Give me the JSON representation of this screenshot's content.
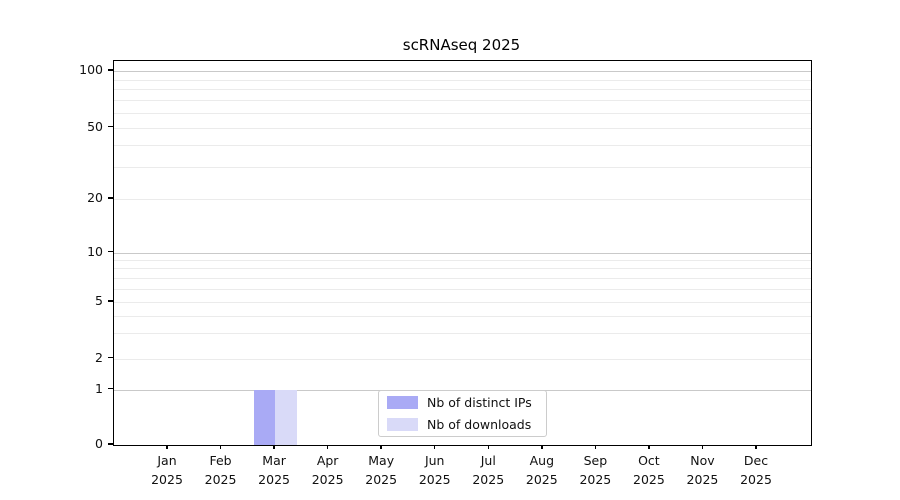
{
  "chart_data": {
    "type": "bar",
    "title": "scRNAseq 2025",
    "categories": [
      "Jan",
      "Feb",
      "Mar",
      "Apr",
      "May",
      "Jun",
      "Jul",
      "Aug",
      "Sep",
      "Oct",
      "Nov",
      "Dec"
    ],
    "category_year": "2025",
    "series": [
      {
        "name": "Nb of distinct IPs",
        "color": "#a9aaf5",
        "values": [
          0,
          0,
          1,
          0,
          0,
          0,
          0,
          0,
          0,
          0,
          0,
          0
        ]
      },
      {
        "name": "Nb of downloads",
        "color": "#d9daf8",
        "values": [
          0,
          0,
          1,
          0,
          0,
          0,
          0,
          0,
          0,
          0,
          0,
          0
        ]
      }
    ],
    "y_axis": {
      "scale": "symlog",
      "tick_labels": [
        "0",
        "1",
        "2",
        "5",
        "10",
        "20",
        "50",
        "100"
      ],
      "ticks": [
        0,
        1,
        2,
        5,
        10,
        20,
        50,
        100
      ],
      "major_gridlines": [
        1,
        10,
        100
      ],
      "minor_gridlines": [
        2,
        3,
        4,
        5,
        6,
        7,
        8,
        9,
        20,
        30,
        40,
        50,
        60,
        70,
        80,
        90
      ]
    },
    "grid": true,
    "legend_position": "lower center",
    "colors": {
      "axis": "#000000",
      "major_grid": "#c9c9c9",
      "minor_grid": "#ebebeb",
      "background": "#ffffff"
    }
  }
}
